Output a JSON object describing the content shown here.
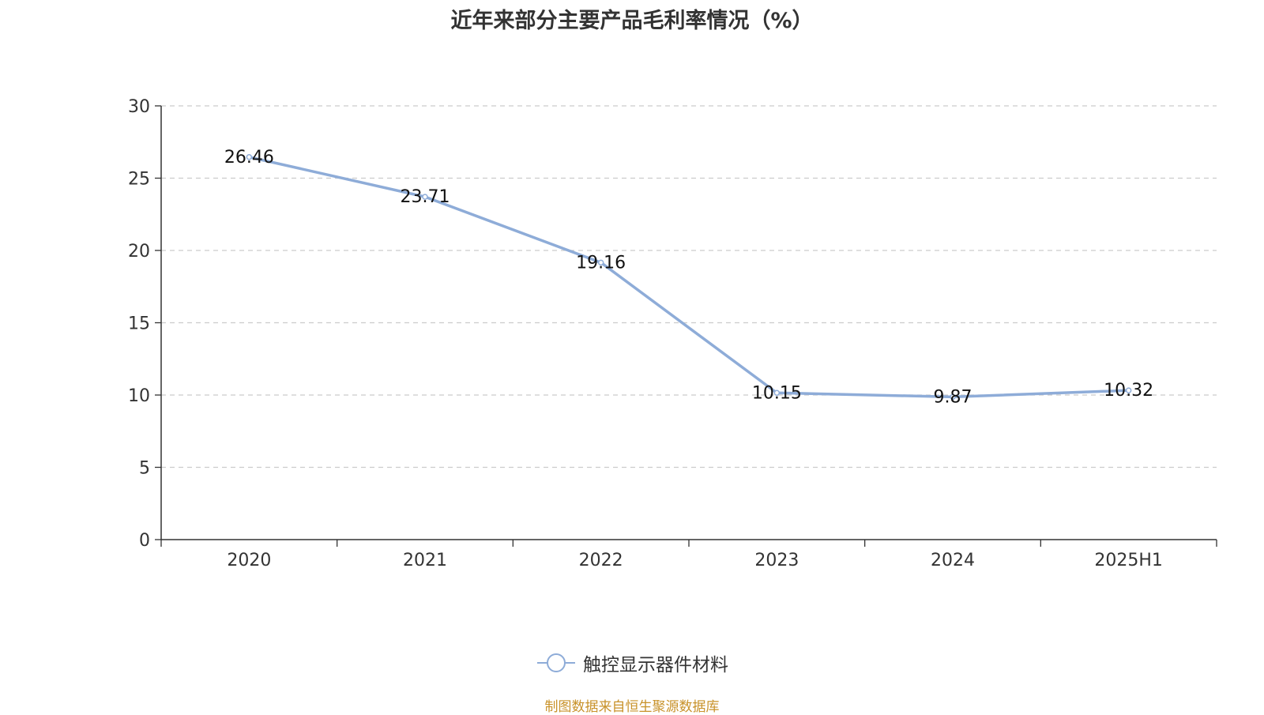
{
  "chart_data": {
    "type": "line",
    "title": "近年来部分主要产品毛利率情况（%）",
    "categories": [
      "2020",
      "2021",
      "2022",
      "2023",
      "2024",
      "2025H1"
    ],
    "series": [
      {
        "name": "触控显示器件材料",
        "values": [
          26.46,
          23.71,
          19.16,
          10.15,
          9.87,
          10.32
        ],
        "labels": [
          "26.46",
          "23.71",
          "19.16",
          "10.15",
          "9.87",
          "10.32"
        ],
        "color": "#8eacd8"
      }
    ],
    "xlabel": "",
    "ylabel": "",
    "ylim": [
      0,
      30
    ],
    "yticks": [
      0,
      5,
      10,
      15,
      20,
      25,
      30
    ],
    "grid": true,
    "legend_position": "bottom"
  },
  "source_note": "制图数据来自恒生聚源数据库"
}
